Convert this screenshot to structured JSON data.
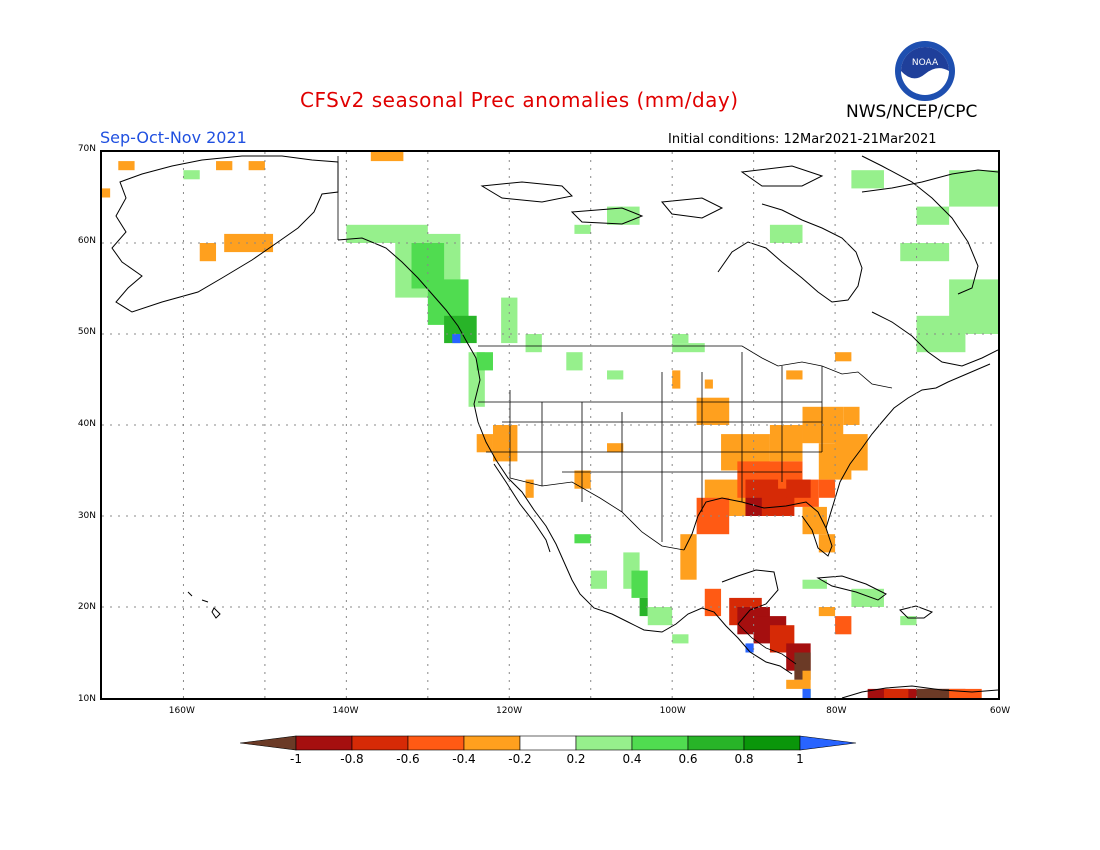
{
  "header": {
    "title": "CFSv2 seasonal Prec anomalies (mm/day)",
    "season": "Sep-Oct-Nov 2021",
    "agency": "NWS/NCEP/CPC",
    "initial_conditions": "Initial conditions: 12Mar2021-21Mar2021",
    "logo_text": "NOAA"
  },
  "axes": {
    "lat_labels": [
      "70N",
      "60N",
      "50N",
      "40N",
      "30N",
      "20N",
      "10N"
    ],
    "lon_labels": [
      "160W",
      "140W",
      "120W",
      "100W",
      "80W",
      "60W"
    ],
    "lat_range": [
      10,
      70
    ],
    "lon_range": [
      -170,
      -60
    ]
  },
  "colorbar": {
    "labels": [
      "-1",
      "-0.8",
      "-0.6",
      "-0.4",
      "-0.2",
      "0.2",
      "0.4",
      "0.6",
      "0.8",
      "1"
    ],
    "colors": [
      "#6b3a26",
      "#a50f0f",
      "#d62a06",
      "#ff5a14",
      "#ffa01e",
      "#ffffff",
      "#96f08c",
      "#50dc50",
      "#28b428",
      "#0a960a",
      "#2864ff"
    ]
  },
  "anomaly_colors": {
    "brown": "#6b3a26",
    "darkred": "#a50f0f",
    "red": "#d62a06",
    "redorange": "#ff5a14",
    "orange": "#ffa01e",
    "lightgreen": "#96f08c",
    "green": "#50dc50",
    "darkgreen": "#28b428",
    "deepgreen": "#0a960a",
    "blue": "#2864ff"
  }
}
